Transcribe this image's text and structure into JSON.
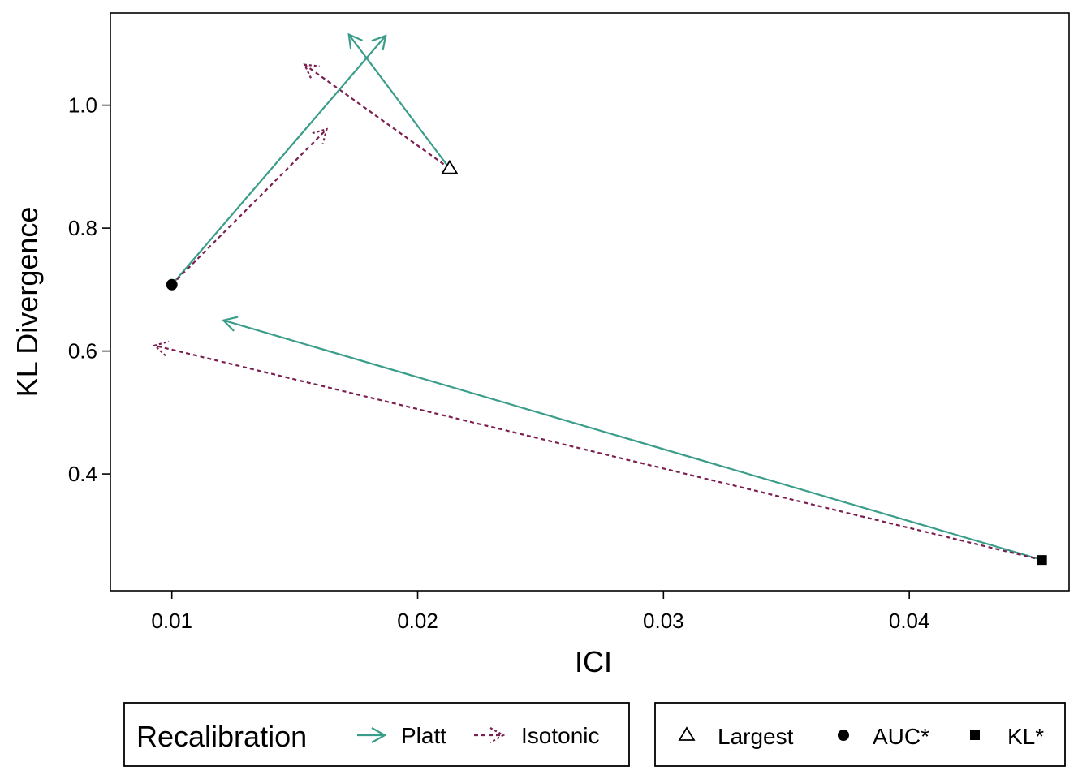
{
  "chart_data": {
    "type": "arrow-scatter",
    "xlabel": "ICI",
    "ylabel": "KL Divergence",
    "xlim": [
      0.0075,
      0.0465
    ],
    "ylim": [
      0.21,
      1.15
    ],
    "xticks": [
      0.01,
      0.02,
      0.03,
      0.04
    ],
    "xtick_labels": [
      "0.01",
      "0.02",
      "0.03",
      "0.04"
    ],
    "yticks": [
      0.4,
      0.6,
      0.8,
      1.0
    ],
    "ytick_labels": [
      "0.4",
      "0.6",
      "0.8",
      "1.0"
    ],
    "grid": false,
    "points": [
      {
        "model": "Largest",
        "shape": "open-triangle",
        "x": 0.0213,
        "y": 0.897
      },
      {
        "model": "AUC*",
        "shape": "filled-circle",
        "x": 0.01,
        "y": 0.708
      },
      {
        "model": "KL*",
        "shape": "filled-square",
        "x": 0.0454,
        "y": 0.26
      }
    ],
    "arrows": [
      {
        "model": "Largest",
        "method": "Platt",
        "from": [
          0.0213,
          0.897
        ],
        "to": [
          0.0172,
          1.115
        ]
      },
      {
        "model": "Largest",
        "method": "Isotonic",
        "from": [
          0.0213,
          0.897
        ],
        "to": [
          0.0154,
          1.066
        ]
      },
      {
        "model": "AUC*",
        "method": "Platt",
        "from": [
          0.01,
          0.708
        ],
        "to": [
          0.0187,
          1.113
        ]
      },
      {
        "model": "AUC*",
        "method": "Isotonic",
        "from": [
          0.01,
          0.708
        ],
        "to": [
          0.0163,
          0.961
        ]
      },
      {
        "model": "KL*",
        "method": "Platt",
        "from": [
          0.0454,
          0.26
        ],
        "to": [
          0.0121,
          0.65
        ]
      },
      {
        "model": "KL*",
        "method": "Isotonic",
        "from": [
          0.0454,
          0.26
        ],
        "to": [
          0.0093,
          0.609
        ]
      }
    ],
    "legend": {
      "placement": "bottom",
      "recalibration_title": "Recalibration",
      "methods": [
        {
          "name": "Platt",
          "color": "#3a9d8a",
          "dash": "solid"
        },
        {
          "name": "Isotonic",
          "color": "#7a1f4f",
          "dash": "dotted"
        }
      ],
      "models": [
        {
          "name": "Largest",
          "shape": "open-triangle"
        },
        {
          "name": "AUC*",
          "shape": "filled-circle"
        },
        {
          "name": "KL*",
          "shape": "filled-square"
        }
      ]
    }
  }
}
